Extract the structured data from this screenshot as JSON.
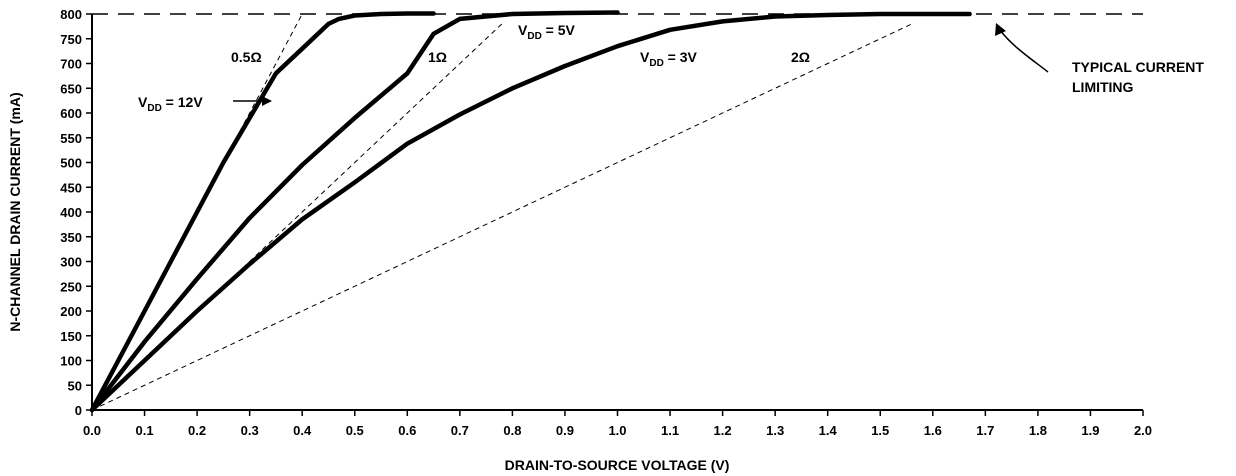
{
  "chart_data": {
    "type": "line",
    "title": "",
    "xlabel": "DRAIN-TO-SOURCE VOLTAGE (V)",
    "ylabel": "N-CHANNEL DRAIN CURRENT (mA)",
    "xlim": [
      0.0,
      2.0
    ],
    "ylim": [
      0,
      800
    ],
    "x_ticks": [
      "0.0",
      "0.1",
      "0.2",
      "0.3",
      "0.4",
      "0.5",
      "0.6",
      "0.7",
      "0.8",
      "0.9",
      "1.0",
      "1.1",
      "1.2",
      "1.3",
      "1.4",
      "1.5",
      "1.6",
      "1.7",
      "1.8",
      "1.9",
      "2.0"
    ],
    "y_ticks": [
      "0",
      "50",
      "100",
      "150",
      "200",
      "250",
      "300",
      "350",
      "400",
      "450",
      "500",
      "550",
      "600",
      "650",
      "700",
      "750",
      "800"
    ],
    "grid": false,
    "series": [
      {
        "name": "VDD = 12V",
        "style": "solid-thick",
        "x": [
          0.0,
          0.05,
          0.1,
          0.15,
          0.2,
          0.25,
          0.3,
          0.35,
          0.4,
          0.45,
          0.47,
          0.5,
          0.55,
          0.6,
          0.65
        ],
        "y": [
          0,
          100,
          200,
          300,
          400,
          500,
          590,
          680,
          730,
          780,
          790,
          797,
          800,
          801,
          801
        ]
      },
      {
        "name": "VDD = 5V",
        "style": "solid-thick",
        "x": [
          0.0,
          0.1,
          0.2,
          0.3,
          0.4,
          0.5,
          0.6,
          0.65,
          0.7,
          0.8,
          0.9,
          1.0
        ],
        "y": [
          0,
          138,
          265,
          388,
          495,
          590,
          680,
          760,
          790,
          800,
          802,
          803
        ]
      },
      {
        "name": "VDD = 3V",
        "style": "solid-thick",
        "x": [
          0.0,
          0.1,
          0.2,
          0.3,
          0.4,
          0.5,
          0.6,
          0.7,
          0.8,
          0.9,
          1.0,
          1.1,
          1.2,
          1.3,
          1.4,
          1.5,
          1.6,
          1.67
        ],
        "y": [
          0,
          100,
          200,
          295,
          385,
          460,
          538,
          597,
          650,
          695,
          735,
          768,
          785,
          795,
          798,
          800,
          800,
          800
        ]
      },
      {
        "name": "0.5Ω",
        "style": "dashed-thin",
        "x": [
          0.0,
          0.4
        ],
        "y": [
          0,
          800
        ]
      },
      {
        "name": "1Ω",
        "style": "dashed-thin",
        "x": [
          0.0,
          0.78
        ],
        "y": [
          0,
          780
        ]
      },
      {
        "name": "2Ω",
        "style": "dashed-thin",
        "x": [
          0.0,
          1.56
        ],
        "y": [
          0,
          780
        ]
      },
      {
        "name": "TYPICAL CURRENT LIMITING",
        "style": "dashed-long",
        "x": [
          0.0,
          2.0
        ],
        "y": [
          800,
          800
        ]
      }
    ],
    "annotations": {
      "vdd12": {
        "main": "V",
        "sub": "DD",
        "rest": " = 12V"
      },
      "vdd5": {
        "main": "V",
        "sub": "DD",
        "rest": " = 5V"
      },
      "vdd3": {
        "main": "V",
        "sub": "DD",
        "rest": " = 3V"
      },
      "r05": "0.5Ω",
      "r1": "1Ω",
      "r2": "2Ω",
      "limit_line1": "TYPICAL CURRENT",
      "limit_line2": "LIMITING"
    }
  }
}
